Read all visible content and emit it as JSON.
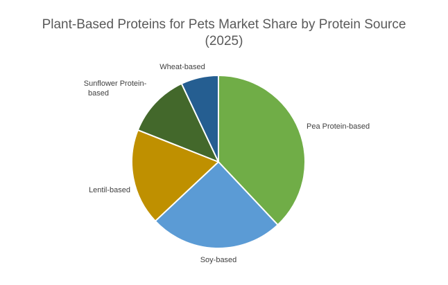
{
  "chart_data": {
    "type": "pie",
    "title_line1": "Plant-Based Proteins for Pets Market Share by Protein Source",
    "title_line2": "(2025)",
    "legend": "none",
    "slices": [
      {
        "label": "Pea Protein-based",
        "value": 38,
        "color": "#70ad47"
      },
      {
        "label": "Soy-based",
        "value": 25,
        "color": "#5b9bd5"
      },
      {
        "label": "Lentil-based",
        "value": 18,
        "color": "#bf9000"
      },
      {
        "label": "Sunflower Protein-based",
        "value": 12,
        "color": "#43682b"
      },
      {
        "label": "Wheat-based",
        "value": 7,
        "color": "#255e91"
      }
    ]
  }
}
